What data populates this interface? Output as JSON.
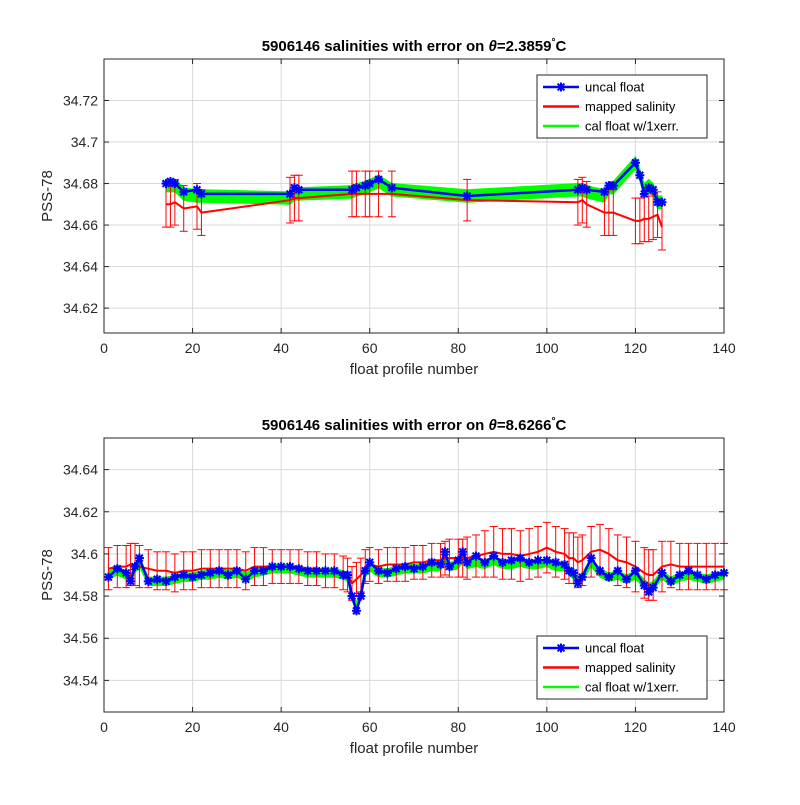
{
  "figure": {
    "panel1": {
      "title_prefix": "5906146 salinities with error on ",
      "title_theta": "θ",
      "title_value": "=2.3859",
      "title_deg": "°",
      "title_unit": "C"
    },
    "panel2": {
      "title_prefix": "5906146 salinities with error on ",
      "title_theta": "θ",
      "title_value": "=8.6266",
      "title_deg": "°",
      "title_unit": "C"
    }
  },
  "colors": {
    "uncal": "#0000ff",
    "mapped": "#ff0000",
    "cal": "#00ff00",
    "grid": "#d9d9d9"
  },
  "chart_data": [
    {
      "type": "line",
      "xlabel": "float profile number",
      "ylabel": "PSS-78",
      "xlim": [
        0,
        140
      ],
      "ylim": [
        34.608,
        34.74
      ],
      "xticks": [
        0,
        20,
        40,
        60,
        80,
        100,
        120,
        140
      ],
      "xtick_labels": [
        "0",
        "20",
        "40",
        "60",
        "80",
        "100",
        "120",
        "140"
      ],
      "yticks": [
        34.62,
        34.64,
        34.66,
        34.68,
        34.7,
        34.72
      ],
      "ytick_labels": [
        "34.62",
        "34.64",
        "34.66",
        "34.68",
        "34.7",
        "34.72"
      ],
      "grid": true,
      "legend_position": "top-right",
      "legend": [
        "uncal float",
        "mapped salinity",
        "cal float w/1xerr."
      ],
      "x": [
        14,
        15,
        16,
        18,
        21,
        22,
        42,
        43,
        44,
        56,
        57,
        59,
        60,
        62,
        65,
        82,
        107,
        108,
        109,
        113,
        114,
        115,
        120,
        121,
        122,
        123,
        124,
        125,
        126
      ],
      "series": [
        {
          "name": "uncal float",
          "values": [
            34.68,
            34.681,
            34.68,
            34.676,
            34.677,
            34.675,
            34.675,
            34.678,
            34.677,
            34.677,
            34.678,
            34.679,
            34.68,
            34.682,
            34.678,
            34.674,
            34.677,
            34.678,
            34.677,
            34.676,
            34.679,
            34.679,
            34.69,
            34.684,
            34.675,
            34.678,
            34.677,
            34.671,
            34.671
          ]
        },
        {
          "name": "mapped salinity",
          "values": [
            34.67,
            34.67,
            34.671,
            34.668,
            34.669,
            34.666,
            34.672,
            34.673,
            34.673,
            34.675,
            34.675,
            34.675,
            34.675,
            34.675,
            34.675,
            34.672,
            34.671,
            34.672,
            34.67,
            34.666,
            34.666,
            34.666,
            34.662,
            34.662,
            34.663,
            34.663,
            34.664,
            34.665,
            34.659
          ]
        },
        {
          "name": "mapped salinity error",
          "values": [
            0.011,
            0.011,
            0.011,
            0.011,
            0.011,
            0.011,
            0.011,
            0.011,
            0.011,
            0.011,
            0.011,
            0.011,
            0.011,
            0.011,
            0.011,
            0.01,
            0.011,
            0.011,
            0.011,
            0.011,
            0.011,
            0.011,
            0.011,
            0.011,
            0.011,
            0.011,
            0.011,
            0.011,
            0.011
          ]
        },
        {
          "name": "cal float w/1xerr.",
          "values": [
            34.679,
            34.679,
            34.679,
            34.675,
            34.674,
            34.674,
            34.673,
            34.675,
            34.675,
            34.676,
            34.677,
            34.678,
            34.679,
            34.681,
            34.677,
            34.674,
            34.677,
            34.677,
            34.676,
            34.674,
            34.678,
            34.678,
            34.69,
            34.684,
            34.677,
            34.679,
            34.677,
            34.671,
            34.671
          ]
        },
        {
          "name": "cal float error",
          "values": [
            0.003,
            0.003,
            0.003,
            0.003,
            0.003,
            0.003,
            0.003,
            0.003,
            0.003,
            0.003,
            0.003,
            0.003,
            0.003,
            0.003,
            0.003,
            0.003,
            0.003,
            0.003,
            0.003,
            0.003,
            0.003,
            0.003,
            0.003,
            0.003,
            0.003,
            0.003,
            0.003,
            0.003,
            0.003
          ]
        }
      ]
    },
    {
      "type": "line",
      "xlabel": "float profile number",
      "ylabel": "PSS-78",
      "xlim": [
        0,
        140
      ],
      "ylim": [
        34.525,
        34.655
      ],
      "xticks": [
        0,
        20,
        40,
        60,
        80,
        100,
        120,
        140
      ],
      "xtick_labels": [
        "0",
        "20",
        "40",
        "60",
        "80",
        "100",
        "120",
        "140"
      ],
      "yticks": [
        34.54,
        34.56,
        34.58,
        34.6,
        34.62,
        34.64
      ],
      "ytick_labels": [
        "34.54",
        "34.56",
        "34.58",
        "34.6",
        "34.62",
        "34.64"
      ],
      "grid": true,
      "legend_position": "bottom-right",
      "legend": [
        "uncal float",
        "mapped salinity",
        "cal float w/1xerr."
      ],
      "x": [
        1,
        3,
        5,
        6,
        7,
        8,
        10,
        12,
        14,
        16,
        18,
        20,
        22,
        24,
        26,
        28,
        30,
        32,
        34,
        36,
        38,
        40,
        42,
        44,
        46,
        48,
        50,
        52,
        54,
        55,
        56,
        57,
        58,
        59,
        60,
        62,
        64,
        66,
        68,
        70,
        72,
        74,
        76,
        77,
        78,
        80,
        81,
        82,
        84,
        86,
        88,
        90,
        92,
        94,
        96,
        98,
        100,
        102,
        104,
        105,
        106,
        107,
        108,
        110,
        112,
        114,
        116,
        118,
        120,
        122,
        123,
        124,
        126,
        128,
        130,
        132,
        134,
        136,
        138,
        140
      ],
      "series": [
        {
          "name": "uncal float",
          "values": [
            34.589,
            34.593,
            34.591,
            34.587,
            34.594,
            34.598,
            34.587,
            34.588,
            34.587,
            34.589,
            34.59,
            34.589,
            34.59,
            34.591,
            34.592,
            34.59,
            34.592,
            34.588,
            34.592,
            34.592,
            34.594,
            34.594,
            34.594,
            34.593,
            34.592,
            34.592,
            34.592,
            34.592,
            34.59,
            34.59,
            34.58,
            34.573,
            34.58,
            34.592,
            34.596,
            34.592,
            34.591,
            34.593,
            34.594,
            34.593,
            34.594,
            34.596,
            34.595,
            34.601,
            34.594,
            34.597,
            34.601,
            34.596,
            34.599,
            34.596,
            34.599,
            34.596,
            34.597,
            34.598,
            34.596,
            34.597,
            34.597,
            34.596,
            34.595,
            34.592,
            34.591,
            34.586,
            34.589,
            34.598,
            34.592,
            34.589,
            34.592,
            34.588,
            34.592,
            34.585,
            34.582,
            34.584,
            34.591,
            34.587,
            34.59,
            34.592,
            34.59,
            34.588,
            34.59,
            34.591
          ]
        },
        {
          "name": "mapped salinity",
          "values": [
            34.593,
            34.594,
            34.594,
            34.595,
            34.595,
            34.594,
            34.593,
            34.592,
            34.592,
            34.591,
            34.592,
            34.592,
            34.593,
            34.593,
            34.593,
            34.593,
            34.593,
            34.592,
            34.594,
            34.594,
            34.594,
            34.594,
            34.594,
            34.594,
            34.593,
            34.593,
            34.592,
            34.592,
            34.591,
            34.59,
            34.586,
            34.588,
            34.59,
            34.594,
            34.595,
            34.594,
            34.595,
            34.595,
            34.595,
            34.596,
            34.596,
            34.597,
            34.597,
            34.598,
            34.598,
            34.598,
            34.598,
            34.598,
            34.599,
            34.6,
            34.601,
            34.6,
            34.6,
            34.599,
            34.6,
            34.601,
            34.603,
            34.601,
            34.6,
            34.598,
            34.598,
            34.596,
            34.597,
            34.601,
            34.602,
            34.6,
            34.597,
            34.596,
            34.594,
            34.591,
            34.59,
            34.59,
            34.594,
            34.595,
            34.594,
            34.594,
            34.594,
            34.594,
            34.594,
            34.594
          ]
        },
        {
          "name": "mapped salinity error",
          "values": [
            0.01,
            0.01,
            0.01,
            0.01,
            0.01,
            0.01,
            0.009,
            0.009,
            0.009,
            0.009,
            0.009,
            0.009,
            0.009,
            0.009,
            0.009,
            0.009,
            0.009,
            0.009,
            0.009,
            0.009,
            0.008,
            0.008,
            0.008,
            0.008,
            0.008,
            0.008,
            0.008,
            0.008,
            0.008,
            0.008,
            0.008,
            0.008,
            0.008,
            0.008,
            0.008,
            0.008,
            0.008,
            0.008,
            0.008,
            0.008,
            0.008,
            0.008,
            0.008,
            0.008,
            0.009,
            0.009,
            0.009,
            0.01,
            0.01,
            0.011,
            0.012,
            0.012,
            0.012,
            0.012,
            0.012,
            0.012,
            0.012,
            0.012,
            0.012,
            0.012,
            0.012,
            0.012,
            0.012,
            0.012,
            0.012,
            0.012,
            0.012,
            0.012,
            0.012,
            0.012,
            0.012,
            0.012,
            0.012,
            0.011,
            0.011,
            0.011,
            0.011,
            0.011,
            0.011,
            0.011
          ]
        },
        {
          "name": "cal float w/1xerr.",
          "values": [
            34.59,
            34.592,
            34.59,
            34.588,
            34.593,
            34.596,
            34.587,
            34.587,
            34.587,
            34.588,
            34.589,
            34.589,
            34.59,
            34.59,
            34.591,
            34.59,
            34.591,
            34.589,
            34.591,
            34.592,
            34.593,
            34.593,
            34.593,
            34.592,
            34.591,
            34.591,
            34.591,
            34.591,
            34.59,
            34.589,
            34.58,
            34.575,
            34.581,
            34.591,
            34.594,
            34.591,
            34.591,
            34.592,
            34.593,
            34.593,
            34.593,
            34.594,
            34.594,
            34.598,
            34.594,
            34.595,
            34.598,
            34.595,
            34.596,
            34.595,
            34.597,
            34.595,
            34.595,
            34.596,
            34.595,
            34.595,
            34.596,
            34.594,
            34.594,
            34.592,
            34.59,
            34.587,
            34.589,
            34.596,
            34.591,
            34.589,
            34.59,
            34.588,
            34.59,
            34.586,
            34.584,
            34.585,
            34.59,
            34.587,
            34.589,
            34.59,
            34.589,
            34.588,
            34.589,
            34.59
          ]
        },
        {
          "name": "cal float error",
          "values": [
            0.002,
            0.002,
            0.002,
            0.002,
            0.002,
            0.002,
            0.002,
            0.002,
            0.002,
            0.002,
            0.002,
            0.002,
            0.002,
            0.002,
            0.002,
            0.002,
            0.002,
            0.002,
            0.002,
            0.002,
            0.002,
            0.002,
            0.002,
            0.002,
            0.002,
            0.002,
            0.002,
            0.002,
            0.002,
            0.002,
            0.002,
            0.002,
            0.002,
            0.002,
            0.002,
            0.002,
            0.002,
            0.002,
            0.002,
            0.002,
            0.002,
            0.002,
            0.002,
            0.002,
            0.002,
            0.002,
            0.002,
            0.002,
            0.002,
            0.002,
            0.002,
            0.002,
            0.002,
            0.002,
            0.002,
            0.002,
            0.002,
            0.002,
            0.002,
            0.002,
            0.002,
            0.002,
            0.002,
            0.002,
            0.002,
            0.002,
            0.002,
            0.002,
            0.002,
            0.002,
            0.002,
            0.002,
            0.002,
            0.002,
            0.002,
            0.002,
            0.002,
            0.002,
            0.002,
            0.002
          ]
        }
      ]
    }
  ]
}
